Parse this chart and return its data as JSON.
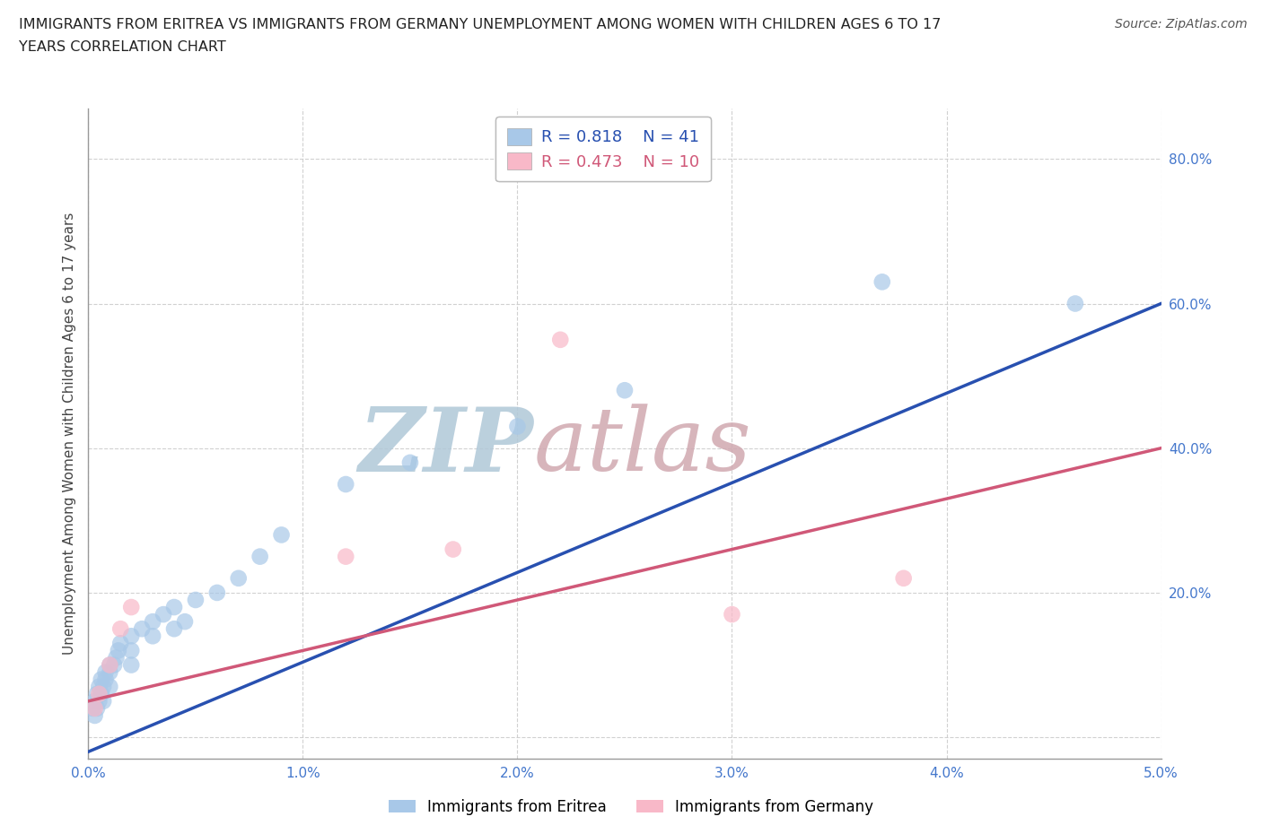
{
  "title_line1": "IMMIGRANTS FROM ERITREA VS IMMIGRANTS FROM GERMANY UNEMPLOYMENT AMONG WOMEN WITH CHILDREN AGES 6 TO 17",
  "title_line2": "YEARS CORRELATION CHART",
  "source": "Source: ZipAtlas.com",
  "ylabel": "Unemployment Among Women with Children Ages 6 to 17 years",
  "xlim": [
    0.0,
    0.05
  ],
  "ylim": [
    -0.03,
    0.87
  ],
  "xticks": [
    0.0,
    0.01,
    0.02,
    0.03,
    0.04,
    0.05
  ],
  "xtick_labels": [
    "0.0%",
    "1.0%",
    "2.0%",
    "3.0%",
    "4.0%",
    "5.0%"
  ],
  "yticks": [
    0.0,
    0.2,
    0.4,
    0.6,
    0.8
  ],
  "ytick_labels": [
    "",
    "20.0%",
    "40.0%",
    "60.0%",
    "80.0%"
  ],
  "r_eritrea": 0.818,
  "n_eritrea": 41,
  "r_germany": 0.473,
  "n_germany": 10,
  "legend_label_eritrea": "Immigrants from Eritrea",
  "legend_label_germany": "Immigrants from Germany",
  "color_eritrea": "#a8c8e8",
  "color_germany": "#f8b8c8",
  "line_color_eritrea": "#2850b0",
  "line_color_germany": "#d05878",
  "watermark": "ZIPatlas",
  "watermark_color_zip": "#b0c8d8",
  "watermark_color_atlas": "#d0a8b0",
  "background_color": "#ffffff",
  "grid_color": "#cccccc",
  "eritrea_x": [
    0.0002,
    0.0003,
    0.0003,
    0.0004,
    0.0004,
    0.0005,
    0.0005,
    0.0006,
    0.0006,
    0.0007,
    0.0007,
    0.0008,
    0.0008,
    0.001,
    0.001,
    0.001,
    0.0012,
    0.0013,
    0.0014,
    0.0015,
    0.002,
    0.002,
    0.002,
    0.0025,
    0.003,
    0.003,
    0.0035,
    0.004,
    0.004,
    0.0045,
    0.005,
    0.006,
    0.007,
    0.008,
    0.009,
    0.012,
    0.015,
    0.02,
    0.025,
    0.037,
    0.046
  ],
  "eritrea_y": [
    0.04,
    0.05,
    0.03,
    0.06,
    0.04,
    0.05,
    0.07,
    0.06,
    0.08,
    0.05,
    0.07,
    0.08,
    0.09,
    0.07,
    0.09,
    0.1,
    0.1,
    0.11,
    0.12,
    0.13,
    0.1,
    0.12,
    0.14,
    0.15,
    0.14,
    0.16,
    0.17,
    0.15,
    0.18,
    0.16,
    0.19,
    0.2,
    0.22,
    0.25,
    0.28,
    0.35,
    0.38,
    0.43,
    0.48,
    0.63,
    0.6
  ],
  "germany_x": [
    0.0003,
    0.0005,
    0.001,
    0.0015,
    0.002,
    0.012,
    0.017,
    0.022,
    0.03,
    0.038
  ],
  "germany_y": [
    0.04,
    0.06,
    0.1,
    0.15,
    0.18,
    0.25,
    0.26,
    0.55,
    0.17,
    0.22
  ],
  "blue_line_x0": 0.0,
  "blue_line_y0": -0.02,
  "blue_line_x1": 0.05,
  "blue_line_y1": 0.6,
  "pink_line_x0": 0.0,
  "pink_line_y0": 0.05,
  "pink_line_x1": 0.05,
  "pink_line_y1": 0.4
}
